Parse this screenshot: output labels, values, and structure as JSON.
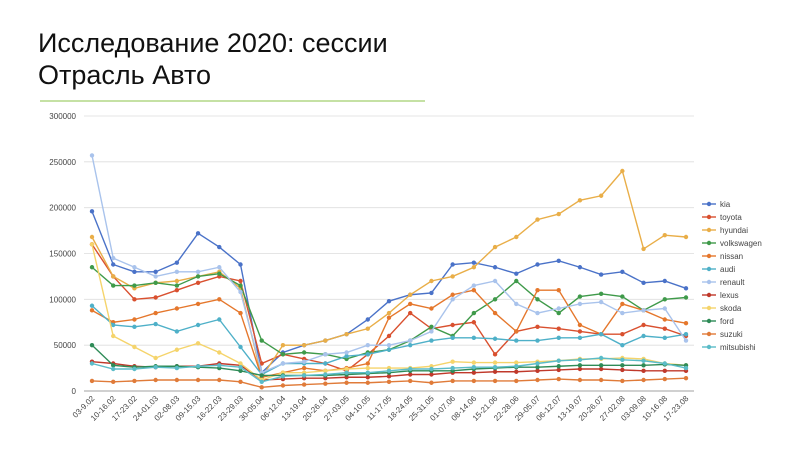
{
  "chart_data": {
    "type": "line",
    "title": "Исследование 2020: сессии",
    "subtitle": "Отрасль Авто",
    "categories": [
      "03-9.02",
      "10-16.02",
      "17-23.02",
      "24-01.03",
      "02-08.03",
      "09-15.03",
      "16-22.03",
      "23-29.03",
      "30-05.04",
      "06-12.04",
      "13-19.04",
      "20-26.04",
      "27-03.05",
      "04-10.05",
      "11-17.05",
      "18-24.05",
      "25-31.05",
      "01-07.06",
      "08-14.06",
      "15-21.06",
      "22-28.06",
      "29-05.07",
      "06-12.07",
      "13-19.07",
      "20-26.07",
      "27-02.08",
      "03-09.08",
      "10-16.08",
      "17-23.08"
    ],
    "ylim": [
      0,
      300000
    ],
    "yticks": [
      0,
      50000,
      100000,
      150000,
      200000,
      250000,
      300000
    ],
    "grid": true,
    "legend": "right",
    "series": [
      {
        "name": "kia",
        "color": "#4a72c8",
        "values": [
          196000,
          138000,
          130000,
          130000,
          140000,
          172000,
          157000,
          138000,
          20000,
          42000,
          50000,
          55000,
          62000,
          78000,
          98000,
          105000,
          107000,
          138000,
          140000,
          135000,
          128000,
          138000,
          142000,
          135000,
          127000,
          130000,
          118000,
          120000,
          112000
        ]
      },
      {
        "name": "toyota",
        "color": "#d9502f",
        "values": [
          160000,
          125000,
          100000,
          102000,
          110000,
          118000,
          125000,
          120000,
          30000,
          40000,
          35000,
          30000,
          22000,
          40000,
          60000,
          85000,
          68000,
          72000,
          75000,
          40000,
          65000,
          70000,
          68000,
          65000,
          62000,
          62000,
          72000,
          68000,
          60000
        ]
      },
      {
        "name": "hyundai",
        "color": "#e9ae48",
        "values": [
          168000,
          125000,
          112000,
          118000,
          120000,
          125000,
          130000,
          112000,
          15000,
          50000,
          50000,
          55000,
          62000,
          68000,
          85000,
          105000,
          120000,
          125000,
          135000,
          157000,
          168000,
          187000,
          193000,
          208000,
          213000,
          240000,
          155000,
          170000,
          168000
        ]
      },
      {
        "name": "volkswagen",
        "color": "#3f9a4a",
        "values": [
          135000,
          115000,
          115000,
          118000,
          115000,
          125000,
          128000,
          115000,
          55000,
          40000,
          42000,
          40000,
          35000,
          42000,
          45000,
          55000,
          70000,
          60000,
          85000,
          100000,
          120000,
          100000,
          85000,
          103000,
          106000,
          103000,
          88000,
          100000,
          102000
        ]
      },
      {
        "name": "nissan",
        "color": "#e5772c",
        "values": [
          88000,
          75000,
          78000,
          85000,
          90000,
          95000,
          100000,
          85000,
          15000,
          20000,
          25000,
          22000,
          25000,
          30000,
          80000,
          95000,
          90000,
          105000,
          110000,
          85000,
          65000,
          110000,
          110000,
          72000,
          62000,
          95000,
          88000,
          78000,
          74000
        ]
      },
      {
        "name": "audi",
        "color": "#4eb0c8",
        "values": [
          93000,
          72000,
          70000,
          73000,
          65000,
          72000,
          78000,
          48000,
          18000,
          30000,
          30000,
          30000,
          38000,
          40000,
          45000,
          50000,
          55000,
          58000,
          58000,
          57000,
          55000,
          55000,
          58000,
          58000,
          62000,
          50000,
          60000,
          58000,
          62000
        ]
      },
      {
        "name": "renault",
        "color": "#a9c3ec",
        "values": [
          257000,
          145000,
          135000,
          125000,
          130000,
          130000,
          135000,
          108000,
          20000,
          30000,
          32000,
          40000,
          42000,
          50000,
          50000,
          55000,
          65000,
          100000,
          115000,
          120000,
          95000,
          85000,
          90000,
          95000,
          97000,
          85000,
          88000,
          90000,
          55000
        ]
      },
      {
        "name": "lexus",
        "color": "#c0392b",
        "values": [
          32000,
          30000,
          27000,
          26000,
          27000,
          27000,
          30000,
          28000,
          12000,
          13000,
          14000,
          14000,
          15000,
          15000,
          16000,
          18000,
          18000,
          20000,
          20000,
          21000,
          21000,
          22000,
          23000,
          24000,
          24000,
          23000,
          22000,
          22000,
          22000
        ]
      },
      {
        "name": "skoda",
        "color": "#f5d46b",
        "values": [
          160000,
          60000,
          48000,
          36000,
          45000,
          52000,
          42000,
          30000,
          12000,
          20000,
          20000,
          22000,
          24000,
          25000,
          25000,
          25000,
          27000,
          32000,
          31000,
          31000,
          31000,
          32000,
          33000,
          35000,
          35000,
          36000,
          35000,
          30000,
          28000
        ]
      },
      {
        "name": "ford",
        "color": "#2e8b57",
        "values": [
          50000,
          28000,
          26000,
          27000,
          27000,
          26000,
          25000,
          22000,
          17000,
          17000,
          17000,
          17000,
          18000,
          19000,
          20000,
          22000,
          22000,
          22000,
          24000,
          25000,
          26000,
          26000,
          27000,
          28000,
          28000,
          28000,
          28000,
          29000,
          28000
        ]
      },
      {
        "name": "suzuki",
        "color": "#e07b39",
        "values": [
          11000,
          10000,
          11000,
          12000,
          12000,
          12000,
          12000,
          10000,
          4000,
          6000,
          7000,
          8000,
          9000,
          9000,
          10000,
          11000,
          9000,
          11000,
          11000,
          11000,
          11000,
          12000,
          13000,
          12000,
          12000,
          11000,
          12000,
          13000,
          14000
        ]
      },
      {
        "name": "mitsubishi",
        "color": "#5bbcc8",
        "values": [
          30000,
          24000,
          24000,
          26000,
          25000,
          27000,
          28000,
          26000,
          10000,
          16000,
          17000,
          18000,
          20000,
          20000,
          22000,
          24000,
          24000,
          25000,
          26000,
          26000,
          27000,
          30000,
          33000,
          34000,
          36000,
          34000,
          33000,
          30000,
          25000
        ]
      }
    ]
  }
}
